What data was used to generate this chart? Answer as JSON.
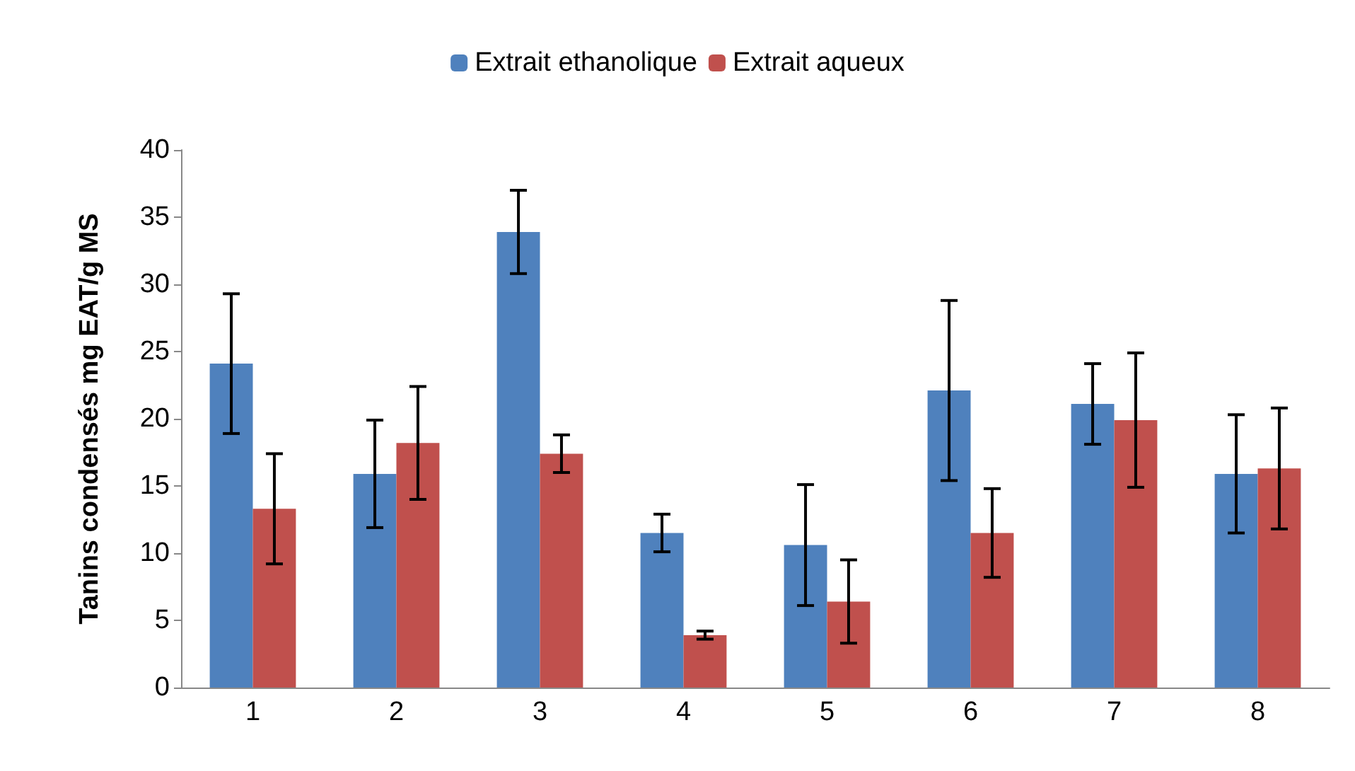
{
  "chart_data": {
    "type": "bar",
    "ylabel": "Tanins condensés mg EAT/g MS",
    "categories": [
      "1",
      "2",
      "3",
      "4",
      "5",
      "6",
      "7",
      "8"
    ],
    "series": [
      {
        "name": "Extrait ethanolique",
        "color": "#4f81bd",
        "values": [
          24.1,
          15.9,
          33.9,
          11.5,
          10.6,
          22.1,
          21.1,
          15.9
        ],
        "errors": [
          5.2,
          4.0,
          3.1,
          1.4,
          4.5,
          6.7,
          3.0,
          4.4
        ]
      },
      {
        "name": "Extrait aqueux",
        "color": "#c0504d",
        "values": [
          13.3,
          18.2,
          17.4,
          3.9,
          6.4,
          11.5,
          19.9,
          16.3
        ],
        "errors": [
          4.1,
          4.2,
          1.4,
          0.3,
          3.1,
          3.3,
          5.0,
          4.5
        ]
      }
    ],
    "ylim": [
      0,
      40
    ],
    "yticks": [
      0,
      5,
      10,
      15,
      20,
      25,
      30,
      35,
      40
    ],
    "grid": false,
    "legend": "top"
  }
}
